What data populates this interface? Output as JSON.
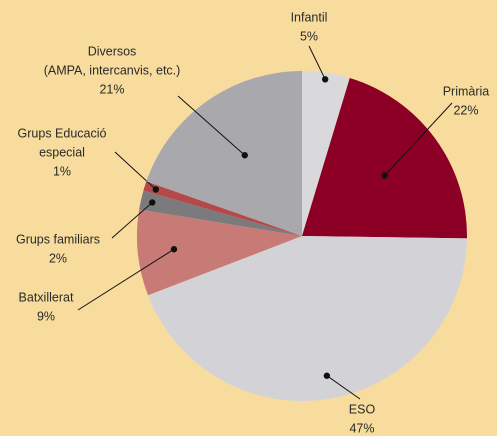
{
  "chart_data": {
    "type": "pie",
    "categories": [
      [
        "Infantil"
      ],
      [
        "Primària"
      ],
      [
        "ESO"
      ],
      [
        "Batxillerat"
      ],
      [
        "Grups familiars"
      ],
      [
        "Grups Educació",
        "especial"
      ],
      [
        "Diversos",
        "(AMPA, intercanvis, etc.)"
      ]
    ],
    "values": [
      5,
      22,
      47,
      9,
      2,
      1,
      21
    ],
    "value_labels": [
      "5%",
      "22%",
      "47%",
      "9%",
      "2%",
      "1%",
      "21%"
    ],
    "colors": [
      "#d9d9db",
      "#8c0026",
      "#d3d3d7",
      "#c87a77",
      "#7b7b7d",
      "#b5484a",
      "#a9a9ad"
    ]
  }
}
